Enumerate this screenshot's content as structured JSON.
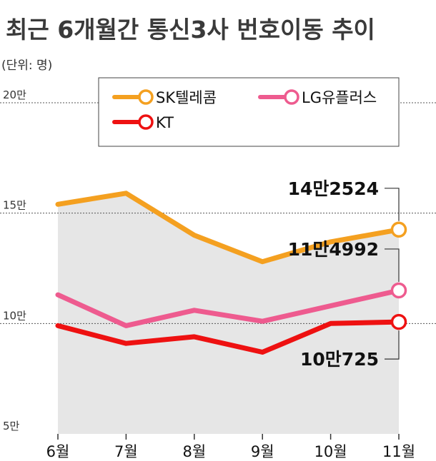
{
  "chart_data": {
    "type": "area",
    "title": "최근 6개월간 통신3사 번호이동 추이",
    "unit_label": "(단위: 명)",
    "categories": [
      "6월",
      "7월",
      "8월",
      "9월",
      "10월",
      "11월"
    ],
    "ylim": [
      50000,
      200000
    ],
    "y_ticks": [
      {
        "value": 200000,
        "label": "20만"
      },
      {
        "value": 150000,
        "label": "15만"
      },
      {
        "value": 100000,
        "label": "10만"
      },
      {
        "value": 50000,
        "label": "5만"
      }
    ],
    "series": [
      {
        "name": "SK텔레콤",
        "color": "#f4a020",
        "values": [
          154000,
          159000,
          140000,
          128000,
          137000,
          142524
        ],
        "end_label": "14만2524",
        "filled": true
      },
      {
        "name": "LG유플러스",
        "color": "#ee5b8f",
        "values": [
          113000,
          99000,
          106000,
          101000,
          108000,
          114992
        ],
        "end_label": "11만4992"
      },
      {
        "name": "KT",
        "color": "#ee1111",
        "values": [
          99000,
          91000,
          94000,
          87000,
          100000,
          100725
        ],
        "end_label": "10만725"
      }
    ],
    "fill_color": "#e6e6e6",
    "grid": true,
    "legend_position": "top"
  }
}
